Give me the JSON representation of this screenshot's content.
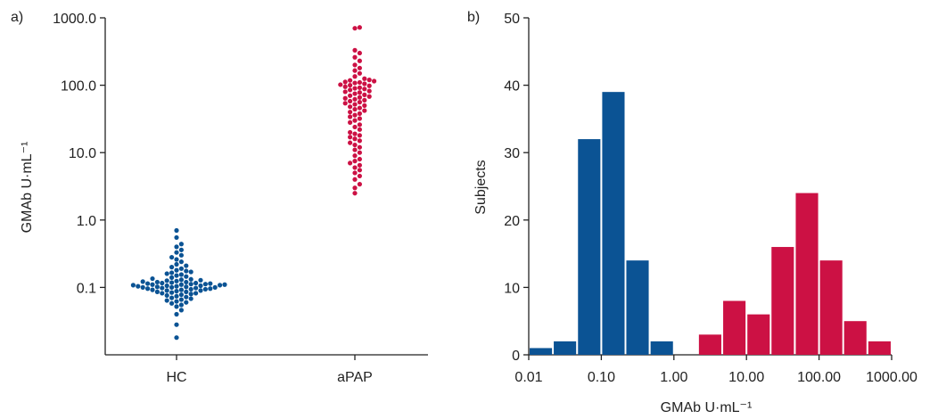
{
  "panels": {
    "a": {
      "label": "a)"
    },
    "b": {
      "label": "b)"
    }
  },
  "colors": {
    "hc": "#0b5394",
    "apap": "#cc1144"
  },
  "chart_data": [
    {
      "type": "scatter",
      "subtype": "beeswarm",
      "ylabel": "GMAb U·mL⁻¹",
      "xlabel": "",
      "yscale": "log",
      "ylim": [
        0.01,
        1000
      ],
      "yticks": [
        0.1,
        1.0,
        10.0,
        100.0,
        1000.0
      ],
      "ytick_labels": [
        "0.1",
        "1.0",
        "10.0",
        "100.0",
        "1000.0"
      ],
      "categories": [
        "HC",
        "aPAP"
      ],
      "grid": false,
      "series": [
        {
          "name": "HC",
          "values": [
            0.018,
            0.028,
            0.04,
            0.046,
            0.052,
            0.055,
            0.058,
            0.06,
            0.062,
            0.064,
            0.066,
            0.068,
            0.07,
            0.072,
            0.074,
            0.076,
            0.078,
            0.08,
            0.082,
            0.082,
            0.084,
            0.086,
            0.086,
            0.088,
            0.09,
            0.09,
            0.092,
            0.092,
            0.094,
            0.094,
            0.096,
            0.096,
            0.098,
            0.098,
            0.1,
            0.1,
            0.1,
            0.102,
            0.102,
            0.104,
            0.104,
            0.106,
            0.106,
            0.108,
            0.108,
            0.11,
            0.11,
            0.11,
            0.112,
            0.112,
            0.114,
            0.114,
            0.116,
            0.116,
            0.118,
            0.12,
            0.12,
            0.122,
            0.124,
            0.126,
            0.128,
            0.13,
            0.132,
            0.135,
            0.14,
            0.145,
            0.15,
            0.155,
            0.16,
            0.165,
            0.17,
            0.175,
            0.18,
            0.19,
            0.2,
            0.21,
            0.22,
            0.24,
            0.26,
            0.28,
            0.3,
            0.33,
            0.36,
            0.4,
            0.44,
            0.55,
            0.7
          ]
        },
        {
          "name": "aPAP",
          "values": [
            2.5,
            3.0,
            3.4,
            4.0,
            4.5,
            5.0,
            5.5,
            6.0,
            6.5,
            7.0,
            7.5,
            8.0,
            9.0,
            10.0,
            11.0,
            12.0,
            13.0,
            14.0,
            15.0,
            16.0,
            17.0,
            18.0,
            19.0,
            20.0,
            22.0,
            24.0,
            26.0,
            28.0,
            30.0,
            32.0,
            34.0,
            36.0,
            38.0,
            40.0,
            42.0,
            44.0,
            46.0,
            48.0,
            50.0,
            52.0,
            54.0,
            56.0,
            58.0,
            60.0,
            62.0,
            64.0,
            66.0,
            68.0,
            70.0,
            72.0,
            75.0,
            78.0,
            80.0,
            82.0,
            85.0,
            88.0,
            90.0,
            92.0,
            95.0,
            98.0,
            100.0,
            102.0,
            105.0,
            108.0,
            110.0,
            112.0,
            115.0,
            118.0,
            120.0,
            125.0,
            135.0,
            150.0,
            165.0,
            180.0,
            200.0,
            230.0,
            260.0,
            300.0,
            330.0,
            700.0,
            720.0
          ]
        }
      ]
    },
    {
      "type": "bar",
      "subtype": "histogram",
      "xlabel": "GMAb U·mL⁻¹",
      "ylabel": "Subjects",
      "xscale": "log",
      "xlim": [
        0.01,
        1000
      ],
      "xticks": [
        0.01,
        0.1,
        1,
        10,
        100,
        1000
      ],
      "xtick_labels": [
        "0.01",
        "0.10",
        "1.00",
        "10.00",
        "100.00",
        "1000.00"
      ],
      "ylim": [
        0,
        50
      ],
      "yticks": [
        0,
        10,
        20,
        30,
        40,
        50
      ],
      "grid": false,
      "bin_width_log10": 0.333,
      "series": [
        {
          "name": "HC",
          "bin_starts": [
            0.01,
            0.0215,
            0.0464,
            0.1,
            0.215,
            0.464
          ],
          "values": [
            1,
            2,
            32,
            39,
            14,
            2
          ]
        },
        {
          "name": "aPAP",
          "bin_starts": [
            2.15,
            4.64,
            10,
            21.5,
            46.4,
            100,
            215,
            464
          ],
          "values": [
            3,
            8,
            6,
            16,
            24,
            14,
            5,
            2
          ]
        }
      ]
    }
  ]
}
